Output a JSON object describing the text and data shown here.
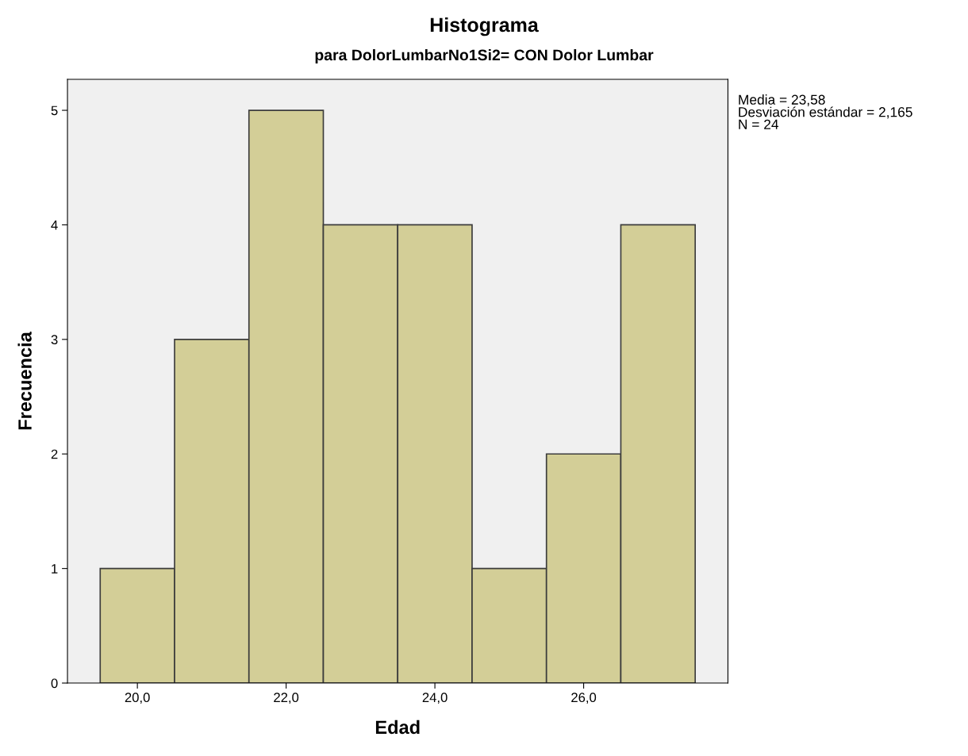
{
  "chart_data": {
    "type": "histogram",
    "title": "Histograma",
    "subtitle": "para DolorLumbarNo1Si2= CON Dolor Lumbar",
    "xlabel": "Edad",
    "ylabel": "Frecuencia",
    "bins": [
      19.5,
      20.5,
      21.5,
      22.5,
      23.5,
      24.5,
      25.5,
      26.5,
      27.5
    ],
    "values": [
      1,
      3,
      5,
      4,
      4,
      1,
      2,
      4
    ],
    "color": "#d3ce97",
    "xlim": [
      19.06,
      27.94
    ],
    "xticks": [
      {
        "value": 20,
        "label": "20,0"
      },
      {
        "value": 22,
        "label": "22,0"
      },
      {
        "value": 24,
        "label": "24,0"
      },
      {
        "value": 26,
        "label": "26,0"
      }
    ],
    "ylim": [
      0,
      5.27
    ],
    "yticks": [
      0,
      1,
      2,
      3,
      4,
      5
    ],
    "grid": false,
    "annotations": [
      "Media = 23,58",
      "Desviación estándar = 2,165",
      "N = 24"
    ]
  }
}
